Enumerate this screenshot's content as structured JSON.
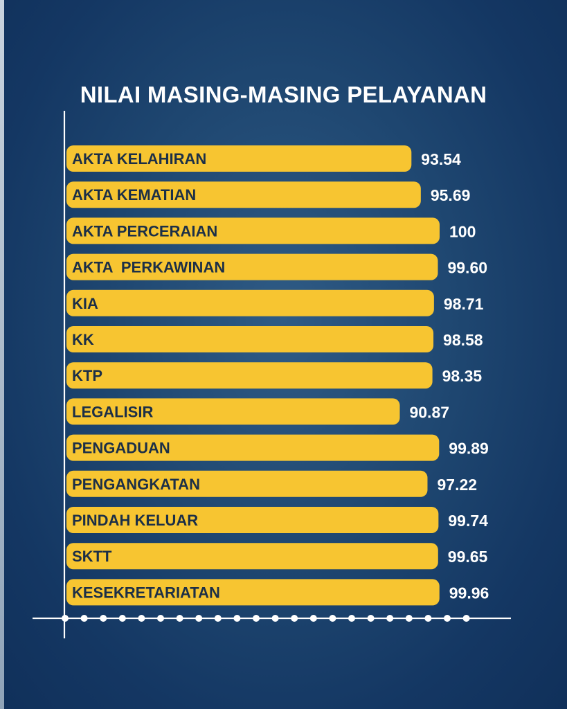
{
  "title": "NILAI MASING-MASING PELAYANAN",
  "colors": {
    "bar": "#f7c531",
    "axis": "#ffffff",
    "label_text": "#1c2f47",
    "value_text": "#ffffff",
    "background": "#1e4670"
  },
  "chart_data": {
    "type": "bar",
    "orientation": "horizontal",
    "title": "NILAI MASING-MASING PELAYANAN",
    "categories": [
      "AKTA KELAHIRAN",
      "AKTA KEMATIAN",
      "AKTA PERCERAIAN",
      "AKTA  PERKAWINAN",
      "KIA",
      "KK",
      "KTP",
      "LEGALISIR",
      "PENGADUAN",
      "PENGANGKATAN",
      "PINDAH KELUAR",
      "SKTT",
      "KESEKRETARIATAN"
    ],
    "values": [
      93.54,
      95.69,
      100,
      99.6,
      98.71,
      98.58,
      98.35,
      90.87,
      99.89,
      97.22,
      99.74,
      99.65,
      99.96
    ],
    "value_labels": [
      "93.54",
      "95.69",
      "100",
      "99.60",
      "98.71",
      "98.58",
      "98.35",
      "90.87",
      "99.89",
      "97.22",
      "99.74",
      "99.65",
      "99.96"
    ],
    "xlabel": "",
    "ylabel": "",
    "xlim": [
      0,
      100
    ],
    "grid": false,
    "legend": "none"
  }
}
